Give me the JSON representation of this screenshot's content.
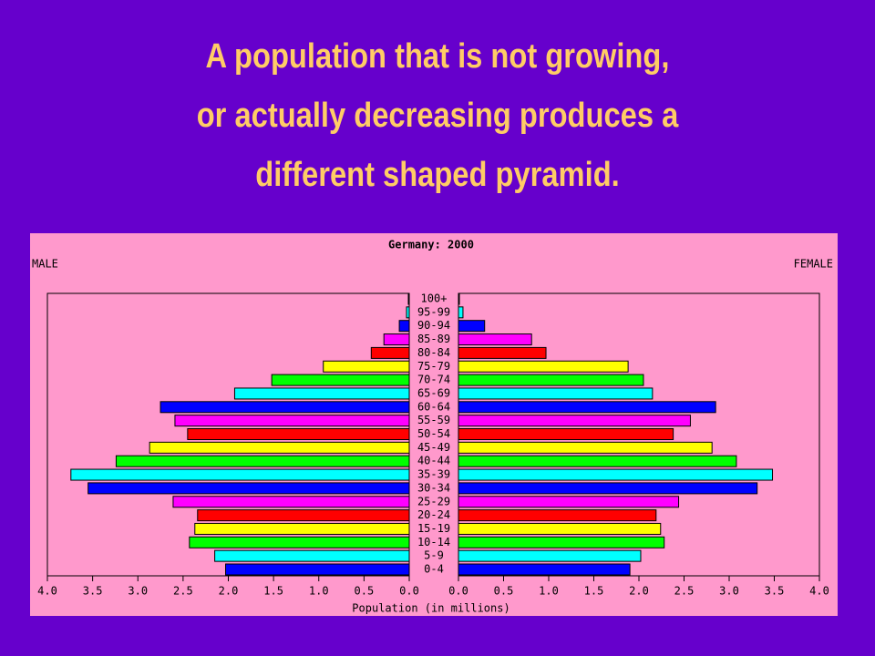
{
  "slide": {
    "title_lines": [
      "A population that is not growing,",
      "or actually decreasing produces a",
      "different shaped pyramid."
    ]
  },
  "chart_data": {
    "type": "pyramid",
    "title": "Germany: 2000",
    "x_label": "Population (in millions)",
    "categories": [
      "0-4",
      "5-9",
      "10-14",
      "15-19",
      "20-24",
      "25-29",
      "30-34",
      "35-39",
      "40-44",
      "45-49",
      "50-54",
      "55-59",
      "60-64",
      "65-69",
      "70-74",
      "75-79",
      "80-84",
      "85-89",
      "90-94",
      "95-99",
      "100+"
    ],
    "colors": [
      "#0000ff",
      "#00ffff",
      "#00ff00",
      "#ffff00",
      "#ff0000",
      "#ff00ff",
      "#0000ff",
      "#00ffff",
      "#00ff00",
      "#ffff00",
      "#ff0000",
      "#ff00ff",
      "#0000ff",
      "#00ffff",
      "#00ff00",
      "#ffff00",
      "#ff0000",
      "#ff00ff",
      "#0000ff",
      "#00ffff",
      "#00ff00"
    ],
    "series": [
      {
        "name": "MALE",
        "values": [
          2.03,
          2.15,
          2.43,
          2.37,
          2.34,
          2.61,
          3.55,
          3.74,
          3.24,
          2.87,
          2.45,
          2.59,
          2.75,
          1.93,
          1.52,
          0.95,
          0.42,
          0.28,
          0.11,
          0.03,
          0.01
        ]
      },
      {
        "name": "FEMALE",
        "values": [
          1.9,
          2.02,
          2.28,
          2.24,
          2.19,
          2.44,
          3.31,
          3.48,
          3.08,
          2.81,
          2.38,
          2.57,
          2.85,
          2.15,
          2.05,
          1.88,
          0.97,
          0.81,
          0.29,
          0.05,
          0.01
        ]
      }
    ],
    "xlim": [
      0,
      4
    ],
    "xticks": [
      {
        "value": 0,
        "label": "0.0"
      },
      0.5,
      {
        "value": 1,
        "label": "1.0"
      },
      1.5,
      {
        "value": 2,
        "label": "2.0"
      },
      2.5,
      {
        "value": 3,
        "label": "3.0"
      },
      3.5,
      {
        "value": 4,
        "label": "4.0"
      }
    ]
  }
}
